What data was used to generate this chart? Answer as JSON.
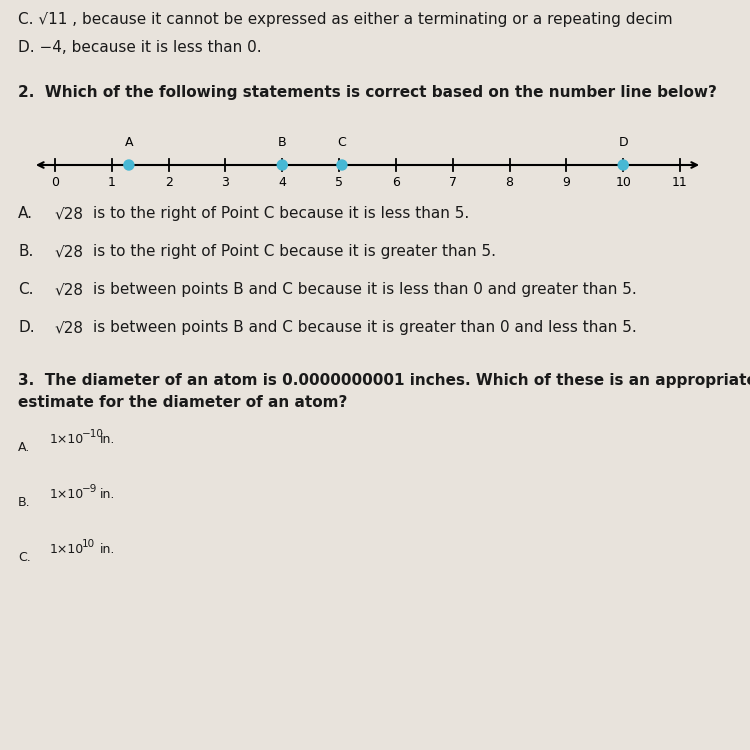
{
  "bg_color": "#e8e3dc",
  "line1_c": "C. √11 , because it cannot be expressed as either a terminating or a repeating decim",
  "line1_d": "D. −4, because it is less than 0.",
  "q2_text": "2.  Which of the following statements is correct based on the number line below?",
  "nl_ticks": [
    0,
    1,
    2,
    3,
    4,
    5,
    6,
    7,
    8,
    9,
    10,
    11
  ],
  "nl_points": [
    {
      "label": "A",
      "x": 1.3
    },
    {
      "label": "B",
      "x": 4.0
    },
    {
      "label": "C",
      "x": 5.05
    },
    {
      "label": "D",
      "x": 10.0
    }
  ],
  "nl_dot_color": "#47b8d4",
  "ans2": [
    {
      "letter": "A.",
      "math": "√28",
      "text": "is to the right of Point C because it is less than 5."
    },
    {
      "letter": "B.",
      "math": "√28",
      "text": "is to the right of Point C because it is greater than 5."
    },
    {
      "letter": "C.",
      "math": "√28",
      "text": "is between points B and C because it is less than 0 and greater than 5."
    },
    {
      "letter": "D.",
      "math": "√28",
      "text": "is between points B and C because it is greater than 0 and less than 5."
    }
  ],
  "q3_line1": "3.  The diameter of an atom is 0.0000000001 inches. Which of these is an appropriate",
  "q3_line2": "estimate for the diameter of an atom?",
  "q3_ans": [
    {
      "letter": "A.",
      "base": "1×10",
      "exp": "−10",
      "suffix": "in."
    },
    {
      "letter": "B.",
      "base": "1×10",
      "exp": "−9",
      "suffix": "in."
    },
    {
      "letter": "C.",
      "base": "1×10",
      "exp": "10",
      "suffix": "in."
    }
  ]
}
